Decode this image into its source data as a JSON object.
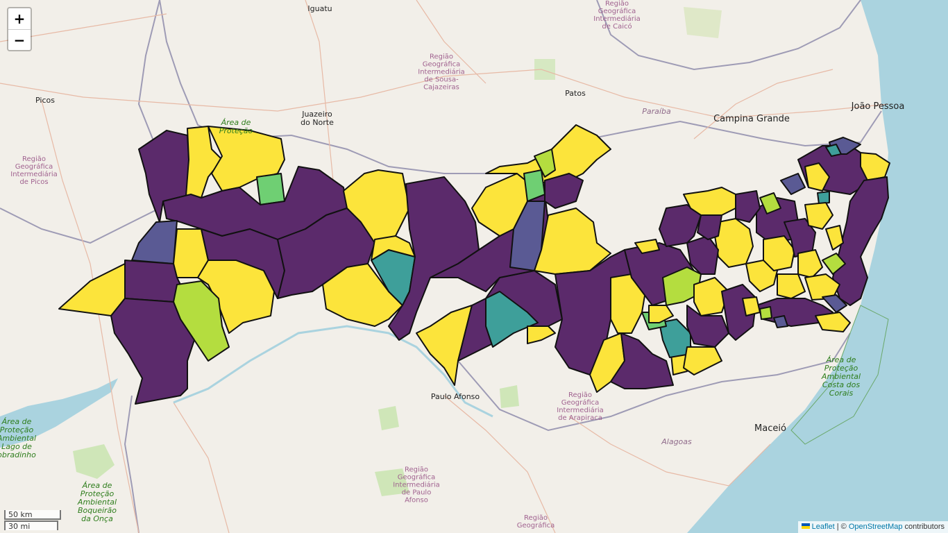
{
  "map": {
    "colors": {
      "land": "#f2efe9",
      "ocean": "#aad3df",
      "border": "#9e9bb5",
      "road": "#e7b9a5",
      "class_low": "#5b2a6b",
      "class_mid_low": "#5a5a94",
      "class_mid": "#3e9f9a",
      "class_mid_high": "#6fcf73",
      "class_high_low": "#b4dd3f",
      "class_high": "#fce43b"
    },
    "labels": {
      "iguatu": "Iguatu",
      "caico": "Região\nGeográfica\nIntermediária\nde Caicó",
      "sousa": "Região\nGeográfica\nIntermediária\nde Sousa-\nCajazeiras",
      "patos": "Patos",
      "picos": "Picos",
      "picos_region": "Região\nGeográfica\nIntermediária\nde Picos",
      "juazeiro": "Juazeiro\ndo Norte",
      "area_protecao_top": "Área de\nProteção",
      "paraiba": "Paraíba",
      "campina_grande": "Campina Grande",
      "joao_pessoa": "João Pessoa",
      "paulo_afonso": "Paulo Afonso",
      "arapiraca": "Região\nGeográfica\nIntermediária\nde Arapiraca",
      "alagoas": "Alagoas",
      "maceio": "Maceió",
      "costa_corais": "Área de\nProteção\nAmbiental\nCosta dos\nCorais",
      "sobradinho": "Área de\nProteção\nAmbiental\nLago de\nobradinho",
      "boqueirao": "Área de\nProteção\nAmbiental\nBoqueirão\nda Onça",
      "paulo_afonso_region": "Região\nGeográfica\nIntermediária\nde Paulo\nAfonso",
      "regiao_bottom": "Região\nGeográfica"
    },
    "zoom": {
      "in_label": "+",
      "out_label": "−"
    },
    "scale": {
      "km": "50 km",
      "mi": "30 mi"
    },
    "attribution": {
      "leaflet": "Leaflet",
      "separator": " | © ",
      "osm": "OpenStreetMap",
      "suffix": " contributors"
    }
  }
}
